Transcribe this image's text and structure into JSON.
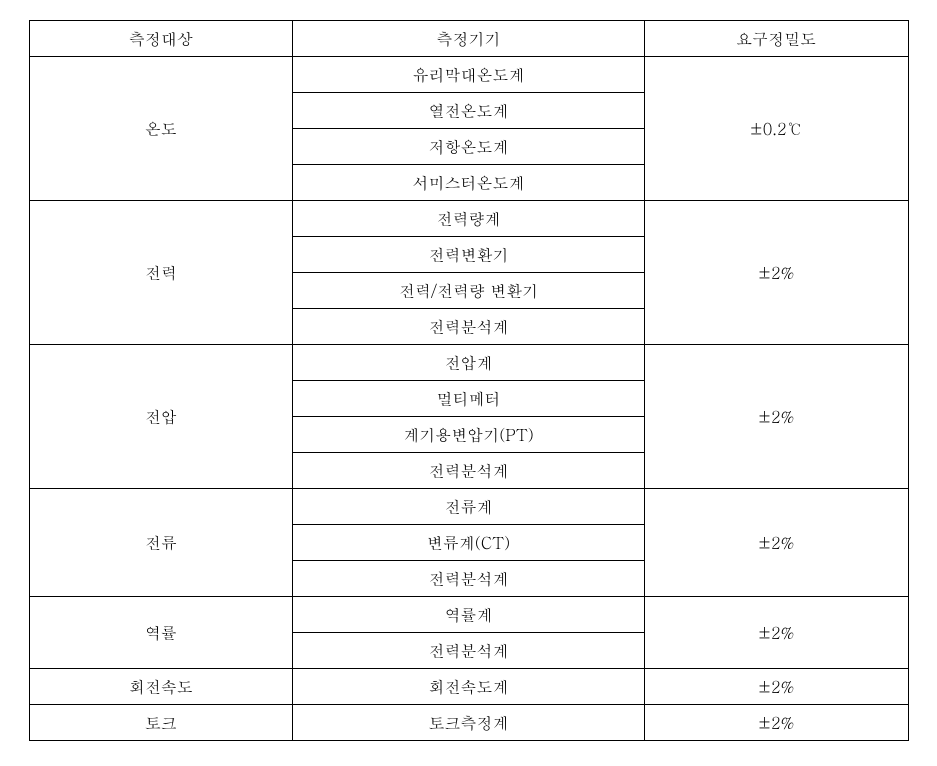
{
  "table": {
    "columns": [
      "측정대상",
      "측정기기",
      "요구정밀도"
    ],
    "groups": [
      {
        "target": "온도",
        "instruments": [
          "유리막대온도계",
          "열전온도계",
          "저항온도계",
          "서미스터온도계"
        ],
        "precision": "±0.2℃"
      },
      {
        "target": "전력",
        "instruments": [
          "전력량계",
          "전력변환기",
          "전력/전력량 변환기",
          "전력분석계"
        ],
        "precision": "±2%"
      },
      {
        "target": "전압",
        "instruments": [
          "전압계",
          "멀티메터",
          "계기용변압기(PT)",
          "전력분석계"
        ],
        "precision": "±2%"
      },
      {
        "target": "전류",
        "instruments": [
          "전류계",
          "변류계(CT)",
          "전력분석계"
        ],
        "precision": "±2%"
      },
      {
        "target": "역률",
        "instruments": [
          "역률계",
          "전력분석계"
        ],
        "precision": "±2%"
      },
      {
        "target": "회전속도",
        "instruments": [
          "회전속도계"
        ],
        "precision": "±2%"
      },
      {
        "target": "토크",
        "instruments": [
          "토크측정계"
        ],
        "precision": "±2%"
      }
    ]
  }
}
